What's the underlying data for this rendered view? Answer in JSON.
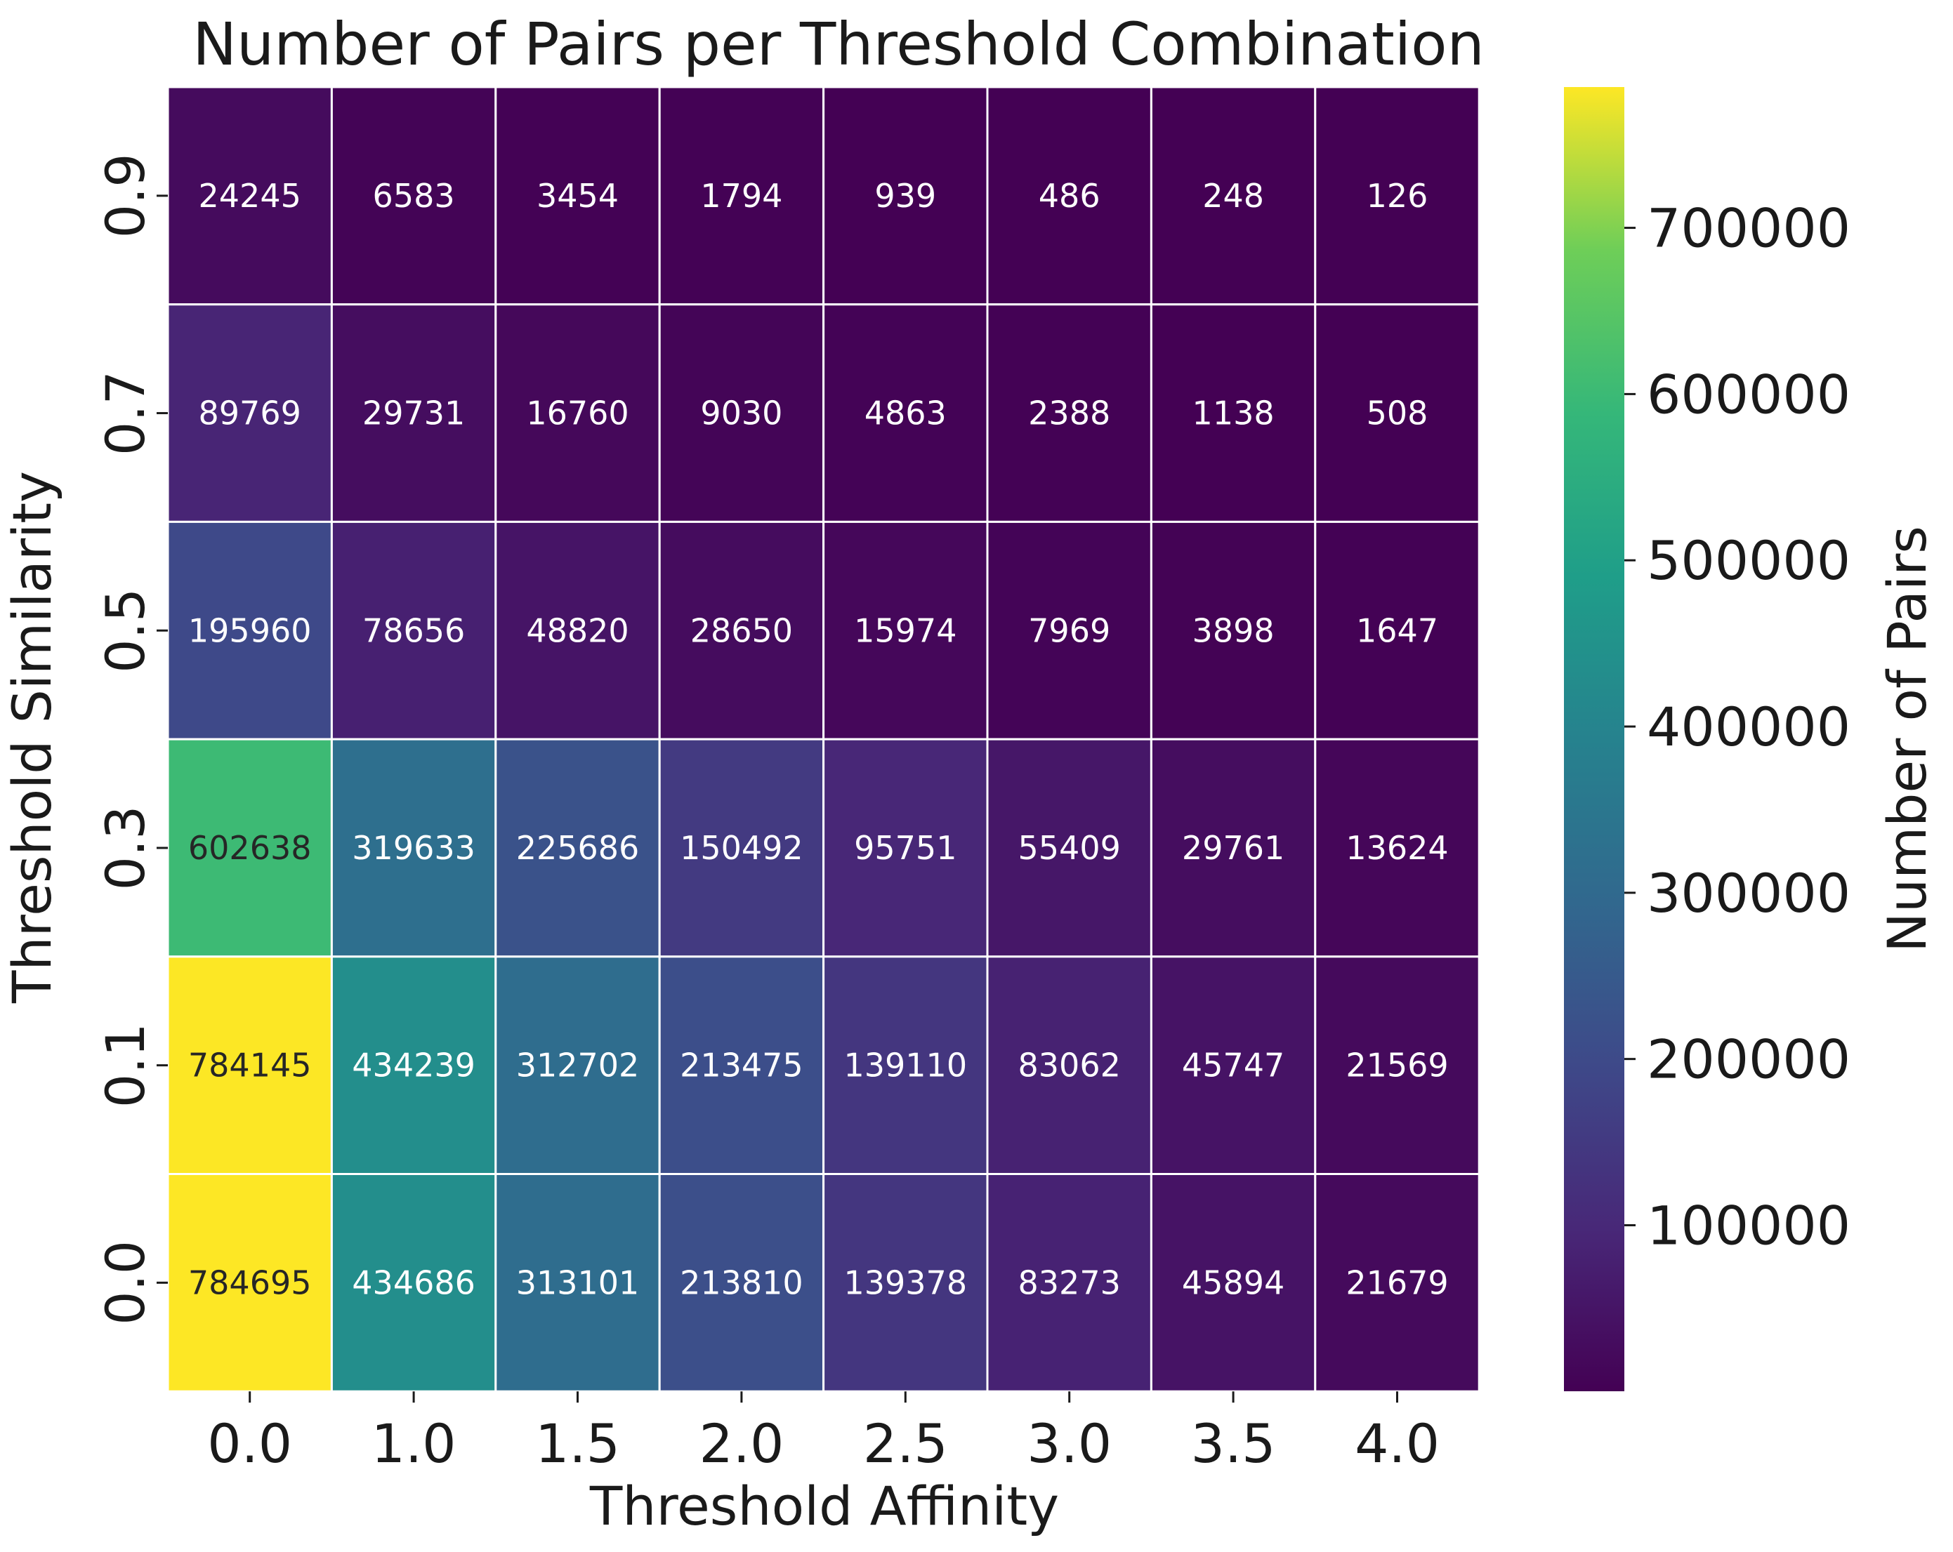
{
  "chart_data": {
    "type": "heatmap",
    "title": "Number of Pairs per Threshold Combination",
    "xlabel": "Threshold Affinity",
    "ylabel": "Threshold Similarity",
    "x_categories": [
      "0.0",
      "1.0",
      "1.5",
      "2.0",
      "2.5",
      "3.0",
      "3.5",
      "4.0"
    ],
    "y_categories": [
      "0.9",
      "0.7",
      "0.5",
      "0.3",
      "0.1",
      "0.0"
    ],
    "values": [
      [
        24245,
        6583,
        3454,
        1794,
        939,
        486,
        248,
        126
      ],
      [
        89769,
        29731,
        16760,
        9030,
        4863,
        2388,
        1138,
        508
      ],
      [
        195960,
        78656,
        48820,
        28650,
        15974,
        7969,
        3898,
        1647
      ],
      [
        602638,
        319633,
        225686,
        150492,
        95751,
        55409,
        29761,
        13624
      ],
      [
        784145,
        434239,
        312702,
        213475,
        139110,
        83062,
        45747,
        21569
      ],
      [
        784695,
        434686,
        313101,
        213810,
        139378,
        83273,
        45894,
        21679
      ]
    ],
    "colormap": "viridis",
    "annotations": true,
    "colorbar": {
      "label": "Number of Pairs",
      "ticks": [
        100000,
        200000,
        300000,
        400000,
        500000,
        600000,
        700000
      ],
      "range": [
        126,
        784695
      ]
    }
  }
}
